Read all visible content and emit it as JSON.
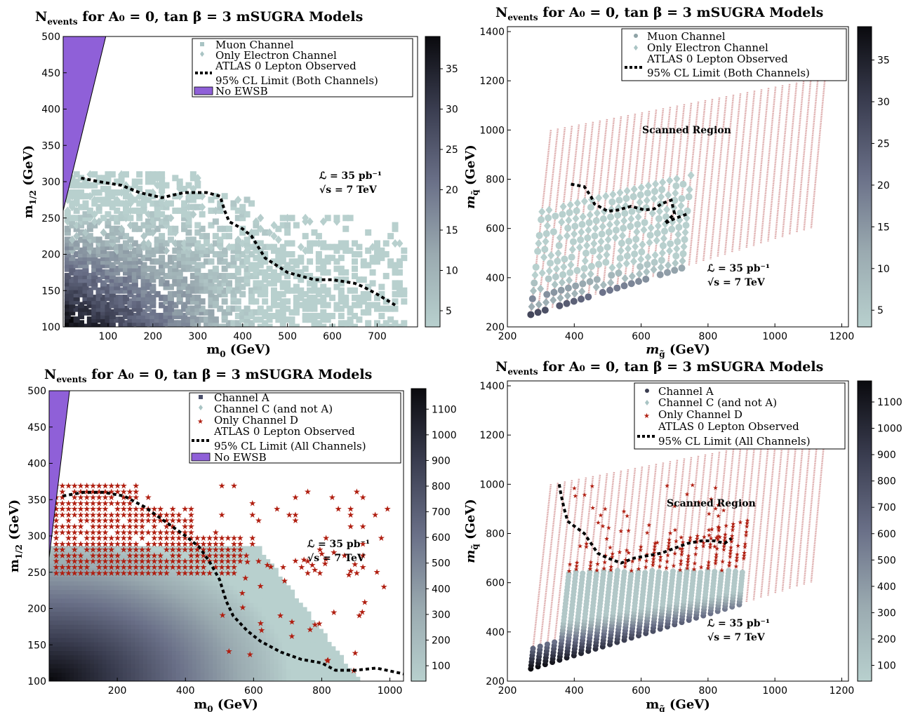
{
  "chart_data": [
    {
      "type": "heatmap",
      "title": "N_events for A_0 = 0, tan β = 3 mSUGRA Models",
      "xlabel": "m0 (GeV)",
      "ylabel": "m1/2 (GeV)",
      "xlim": [
        0,
        790
      ],
      "ylim": [
        100,
        500
      ],
      "xticks": [
        "100",
        "200",
        "300",
        "400",
        "500",
        "600",
        "700"
      ],
      "yticks": [
        "100",
        "150",
        "200",
        "250",
        "300",
        "350",
        "400",
        "450",
        "500"
      ],
      "colorbar": {
        "range": [
          3,
          39
        ],
        "ticks": [
          "5",
          "10",
          "15",
          "20",
          "25",
          "30",
          "35"
        ]
      },
      "legend": [
        "Muon Channel",
        "Only Electron Channel",
        "ATLAS 0 Lepton Observed",
        "95% CL Limit (Both Channels)",
        "No EWSB"
      ],
      "annotations": [
        "ℒ = 35 pb⁻¹",
        "√s = 7 TeV"
      ],
      "limit_curve": {
        "x": [
          40,
          80,
          130,
          170,
          220,
          270,
          320,
          350,
          360,
          370,
          400,
          420,
          430,
          450,
          500,
          560,
          600,
          630,
          650,
          670,
          700,
          740
        ],
        "y": [
          305,
          300,
          295,
          285,
          278,
          285,
          285,
          280,
          260,
          245,
          235,
          225,
          215,
          195,
          175,
          165,
          165,
          162,
          160,
          155,
          145,
          130
        ]
      },
      "no_ewsb": {
        "x": [
          0,
          0,
          95
        ],
        "y": [
          260,
          500,
          500
        ]
      },
      "points_max_m0": 760,
      "points_max_m12": 310
    },
    {
      "type": "scatter",
      "title": "N_events for A_0 = 0, tan β = 3 mSUGRA Models",
      "xlabel": "m_g̃ (GeV)",
      "ylabel": "m_q̃ (GeV)",
      "xlim": [
        200,
        1220
      ],
      "ylim": [
        200,
        1420
      ],
      "xticks": [
        "200",
        "400",
        "600",
        "800",
        "1000",
        "1200"
      ],
      "yticks": [
        "200",
        "400",
        "600",
        "800",
        "1000",
        "1200",
        "1400"
      ],
      "colorbar": {
        "range": [
          3,
          39
        ],
        "ticks": [
          "5",
          "10",
          "15",
          "20",
          "25",
          "30",
          "35"
        ]
      },
      "legend": [
        "Muon Channel",
        "Only Electron Channel",
        "ATLAS 0 Lepton Observed",
        "95% CL Limit (Both Channels)"
      ],
      "annotations": [
        "Scanned Region",
        "ℒ = 35 pb⁻¹",
        "√s = 7 TeV"
      ],
      "limit_curve": {
        "x": [
          390,
          430,
          450,
          460,
          500,
          530,
          570,
          610,
          640,
          660,
          690,
          700,
          670,
          700,
          740
        ],
        "y": [
          780,
          770,
          730,
          700,
          670,
          675,
          690,
          675,
          680,
          700,
          715,
          660,
          620,
          640,
          660
        ]
      }
    },
    {
      "type": "heatmap",
      "title": "N_events for A_0 = 0, tan β = 3 mSUGRA Models",
      "xlabel": "m0 (GeV)",
      "ylabel": "m1/2 (GeV)",
      "xlim": [
        0,
        1040
      ],
      "ylim": [
        100,
        500
      ],
      "xticks": [
        "200",
        "400",
        "600",
        "800",
        "1000"
      ],
      "yticks": [
        "100",
        "150",
        "200",
        "250",
        "300",
        "350",
        "400",
        "450",
        "500"
      ],
      "colorbar": {
        "range": [
          40,
          1180
        ],
        "ticks": [
          "100",
          "200",
          "300",
          "400",
          "500",
          "600",
          "700",
          "800",
          "900",
          "1000",
          "1100"
        ]
      },
      "legend": [
        "Channel A",
        "Channel C (and not A)",
        "Only Channel D",
        "ATLAS 0 Lepton Observed",
        "95% CL Limit (All Channels)",
        "No EWSB"
      ],
      "annotations": [
        "ℒ = 35 pb⁻¹",
        "√s = 7 TeV"
      ],
      "limit_curve": {
        "x": [
          40,
          100,
          160,
          220,
          280,
          340,
          400,
          440,
          470,
          500,
          520,
          540,
          580,
          620,
          680,
          740,
          800,
          840,
          900,
          960,
          1040
        ],
        "y": [
          355,
          360,
          360,
          355,
          340,
          320,
          300,
          285,
          265,
          240,
          210,
          190,
          170,
          155,
          140,
          130,
          125,
          115,
          115,
          118,
          110
        ]
      },
      "no_ewsb": {
        "x": [
          0,
          0,
          60
        ],
        "y": [
          270,
          500,
          500
        ]
      }
    },
    {
      "type": "scatter",
      "title": "N_events for A_0 = 0, tan β = 3 mSUGRA Models",
      "xlabel": "m_g̃ (GeV)",
      "ylabel": "m_q̃ (GeV)",
      "xlim": [
        200,
        1220
      ],
      "ylim": [
        200,
        1420
      ],
      "xticks": [
        "200",
        "400",
        "600",
        "800",
        "1000",
        "1200"
      ],
      "yticks": [
        "200",
        "400",
        "600",
        "800",
        "1000",
        "1200",
        "1400"
      ],
      "colorbar": {
        "range": [
          40,
          1180
        ],
        "ticks": [
          "100",
          "200",
          "300",
          "400",
          "500",
          "600",
          "700",
          "800",
          "900",
          "1000",
          "1100"
        ]
      },
      "legend": [
        "Channel A",
        "Channel C (and not A)",
        "Only Channel D",
        "ATLAS 0 Lepton Observed",
        "95% CL Limit (All Channels)"
      ],
      "annotations": [
        "Scanned Region",
        "ℒ = 35 pb⁻¹",
        "√s = 7 TeV"
      ],
      "limit_curve": {
        "x": [
          355,
          360,
          370,
          380,
          400,
          430,
          450,
          470,
          500,
          520,
          540,
          580,
          620,
          660,
          700,
          740,
          780,
          820,
          850,
          870
        ],
        "y": [
          1000,
          960,
          900,
          850,
          830,
          800,
          760,
          720,
          700,
          690,
          680,
          700,
          710,
          720,
          740,
          760,
          770,
          770,
          760,
          780
        ]
      }
    }
  ],
  "colors": {
    "no_ewsb": "#8f60d8",
    "light_fill": "#adc7c7",
    "dark_fill": "#141418",
    "limit_line": "#000000",
    "star": "#b01e10",
    "scan_line": "#d9a0a0"
  },
  "labels": {
    "p1": {
      "title_n": "N",
      "title_sub": "events",
      "title_rest": " for A₀ = 0, tan β = 3 mSUGRA Models",
      "xlabel_main": "m",
      "xlabel_sub": "0",
      "xlabel_unit": " (GeV)",
      "ylabel_main": "m",
      "ylabel_sub": "1/2",
      "ylabel_unit": " (GeV)",
      "leg1": "Muon Channel",
      "leg2": "Only Electron Channel",
      "leg3": "ATLAS 0 Lepton Observed",
      "leg4": "95% CL Limit (Both Channels)",
      "leg5": "No EWSB",
      "lumi": "ℒ = 35 pb⁻¹",
      "sqrt": "√s = 7 TeV"
    },
    "p2": {
      "title_n": "N",
      "title_sub": "events",
      "title_rest": " for A₀ = 0, tan β = 3 mSUGRA Models",
      "xlabel_main": "m",
      "xlabel_sub": "g̃",
      "xlabel_unit": " (GeV)",
      "ylabel_main": "m",
      "ylabel_sub": "q̃",
      "ylabel_unit": " (GeV)",
      "leg1": "Muon Channel",
      "leg2": "Only Electron Channel",
      "leg3": "ATLAS 0 Lepton Observed",
      "leg4": "95% CL Limit (Both Channels)",
      "scanned": "Scanned Region",
      "lumi": "ℒ = 35 pb⁻¹",
      "sqrt": "√s = 7 TeV"
    },
    "p3": {
      "title_n": "N",
      "title_sub": "events",
      "title_rest": " for A₀ = 0, tan β = 3 mSUGRA Models",
      "xlabel_main": "m",
      "xlabel_sub": "0",
      "xlabel_unit": " (GeV)",
      "ylabel_main": "m",
      "ylabel_sub": "1/2",
      "ylabel_unit": " (GeV)",
      "leg1": "Channel A",
      "leg2": "Channel C (and not A)",
      "leg3": "Only Channel D",
      "leg4": "ATLAS 0 Lepton Observed",
      "leg5": "95% CL Limit (All Channels)",
      "leg6": "No EWSB",
      "lumi": "ℒ = 35 pb⁻¹",
      "sqrt": "√s = 7 TeV"
    },
    "p4": {
      "title_n": "N",
      "title_sub": "events",
      "title_rest": " for A₀ = 0, tan β = 3 mSUGRA Models",
      "xlabel_main": "m",
      "xlabel_sub": "g̃",
      "xlabel_unit": " (GeV)",
      "ylabel_main": "m",
      "ylabel_sub": "q̃",
      "ylabel_unit": " (GeV)",
      "leg1": "Channel A",
      "leg2": "Channel C (and not A)",
      "leg3": "Only Channel D",
      "leg4": "ATLAS 0 Lepton Observed",
      "leg5": "95% CL Limit (All Channels)",
      "scanned": "Scanned Region",
      "lumi": "ℒ = 35 pb⁻¹",
      "sqrt": "√s = 7 TeV"
    }
  }
}
